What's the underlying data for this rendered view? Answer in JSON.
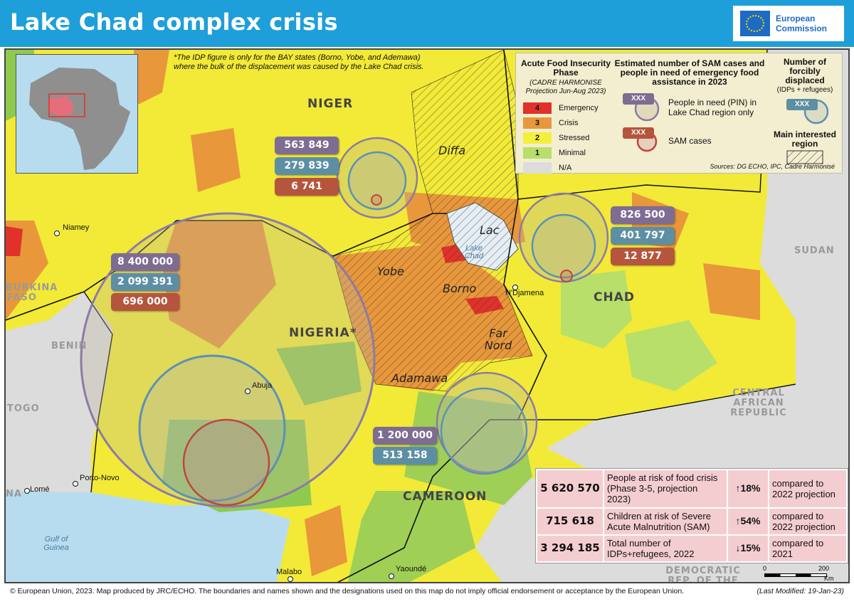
{
  "title": "Lake Chad complex crisis",
  "logo": {
    "line1": "European",
    "line2": "Commission"
  },
  "note": {
    "line1": "*The IDP figure is only for the BAY states (Borno, Yobe, and Ademawa)",
    "line2": "where the bulk of the displacement was caused by the Lake Chad crisis."
  },
  "countries": {
    "niger": "NIGER",
    "nigeria": "NIGERIA*",
    "chad": "CHAD",
    "cameroon": "CAMEROON",
    "sudan": "SUDAN",
    "burkina": "BURKINA FASO",
    "benin": "BENIN",
    "togo": "TOGO",
    "car": "CENTRAL AFRICAN REPUBLIC",
    "drc": "DEMOCRATIC REP. OF THE CONGO",
    "na": "NA"
  },
  "regions": {
    "diffa": "Diffa",
    "lac": "Lac",
    "yobe": "Yobe",
    "borno": "Borno",
    "far_nord": "Far Nord",
    "adamawa": "Adamawa"
  },
  "cities": {
    "niamey": "Niamey",
    "ndjamena": "N'Djamena",
    "abuja": "Abuja",
    "porto_novo": "Porto-Novo",
    "lome": "Lomé",
    "malabo": "Malabo",
    "yaounde": "Yaoundé"
  },
  "water": {
    "lake_chad": "Lake Chad",
    "gulf": "Gulf of Guinea"
  },
  "figures": {
    "niger": {
      "pin": "563 849",
      "idp": "279 839",
      "sam": "6 741"
    },
    "chad": {
      "pin": "826 500",
      "idp": "401 797",
      "sam": "12 877"
    },
    "nigeria": {
      "pin": "8 400 000",
      "idp": "2 099 391",
      "sam": "696 000"
    },
    "cameroon": {
      "pin": "1 200 000",
      "idp": "513 158"
    }
  },
  "legend": {
    "phase_title": "Acute Food Insecurity Phase",
    "phase_sub": "(CADRE HARMONISE Projection Jun-Aug 2023)",
    "phases": [
      {
        "num": "4",
        "label": "Emergency",
        "color": "#e0322b"
      },
      {
        "num": "3",
        "label": "Crisis",
        "color": "#e8973b"
      },
      {
        "num": "2",
        "label": "Stressed",
        "color": "#f6ee3d"
      },
      {
        "num": "1",
        "label": "Minimal",
        "color": "#b7df6a"
      },
      {
        "num": "",
        "label": "N/A",
        "color": "#dcdcdc"
      }
    ],
    "sam_title": "Estimated number of SAM cases and people in need of emergency food assistance in 2023",
    "xxx": "XXX",
    "pin_label": "People in need (PIN) in Lake Chad region only",
    "sam_label": "SAM cases",
    "disp_title": "Number of forcibly displaced",
    "disp_sub": "(IDPs + refugees)",
    "region_title": "Main interested region",
    "sources": "Sources: DG ECHO, IPC, Cadre Harmonisé"
  },
  "stats": [
    {
      "value": "5 620 570",
      "desc": "People at risk of food crisis (Phase 3-5, projection 2023)",
      "arrow": "↑",
      "pct": "18%",
      "compare": "compared to 2022 projection"
    },
    {
      "value": "715 618",
      "desc": "Children at risk of Severe Acute Malnutrition (SAM)",
      "arrow": "↑",
      "pct": "54%",
      "compare": "compared to 2022 projection"
    },
    {
      "value": "3 294 185",
      "desc": "Total number of IDPs+refugees, 2022",
      "arrow": "↓",
      "pct": "15%",
      "compare": "compared to 2021"
    }
  ],
  "scale": {
    "zero": "0",
    "max": "200",
    "unit": "Km"
  },
  "footer": "© European Union, 2023. Map produced by JRC/ECHO. The boundaries and names shown and the designations used on this map do not imply official endorsement or acceptance by the European Union.",
  "modified": "(Last Modified: 19-Jan-23)"
}
